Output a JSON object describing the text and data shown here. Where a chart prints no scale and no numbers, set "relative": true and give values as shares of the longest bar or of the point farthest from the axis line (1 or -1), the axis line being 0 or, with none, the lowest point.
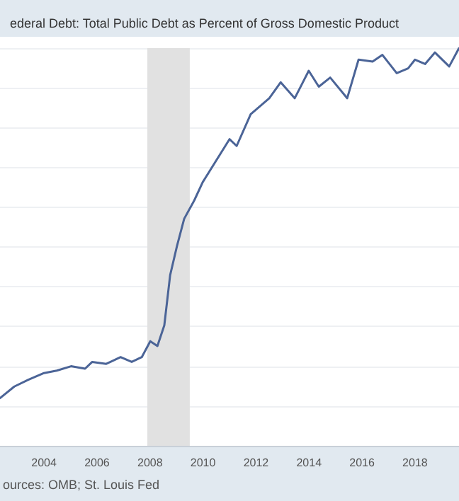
{
  "chart_data": {
    "type": "line",
    "title": "ederal Debt: Total Public Debt as Percent of Gross Domestic Product",
    "relative": true,
    "x": [
      2002.34,
      2002.88,
      2003.41,
      2004.0,
      2004.48,
      2005.02,
      2005.55,
      2005.82,
      2006.35,
      2006.89,
      2007.31,
      2007.69,
      2008.01,
      2008.28,
      2008.54,
      2008.76,
      2009.02,
      2009.29,
      2009.67,
      2009.99,
      2011.0,
      2011.27,
      2011.8,
      2012.5,
      2012.93,
      2013.46,
      2013.73,
      2013.99,
      2014.37,
      2014.8,
      2015.44,
      2015.87,
      2016.4,
      2016.77,
      2017.31,
      2017.74,
      2018.0,
      2018.38,
      2018.75,
      2019.29,
      2019.66
    ],
    "series": [
      {
        "color": "#4b6497",
        "values": [
          0.12,
          0.149,
          0.166,
          0.183,
          0.189,
          0.2,
          0.194,
          0.211,
          0.206,
          0.223,
          0.211,
          0.223,
          0.263,
          0.251,
          0.303,
          0.429,
          0.503,
          0.571,
          0.617,
          0.663,
          0.771,
          0.754,
          0.834,
          0.874,
          0.914,
          0.874,
          0.909,
          0.943,
          0.903,
          0.926,
          0.874,
          0.971,
          0.966,
          0.983,
          0.937,
          0.949,
          0.971,
          0.96,
          0.989,
          0.954,
          1
        ]
      }
    ],
    "xlim": [
      2002.34,
      2019.66
    ],
    "xticks": [
      2004,
      2006,
      2008,
      2010,
      2012,
      2014,
      2016,
      2018
    ],
    "bands": [
      {
        "axis": "x",
        "from": 2007.9,
        "to": 2009.5,
        "color": "#e1e1e1"
      }
    ],
    "grid": "y",
    "marker": "none",
    "line_style": "solid",
    "annotations": [
      "ources: OMB; St. Louis Fed"
    ]
  }
}
